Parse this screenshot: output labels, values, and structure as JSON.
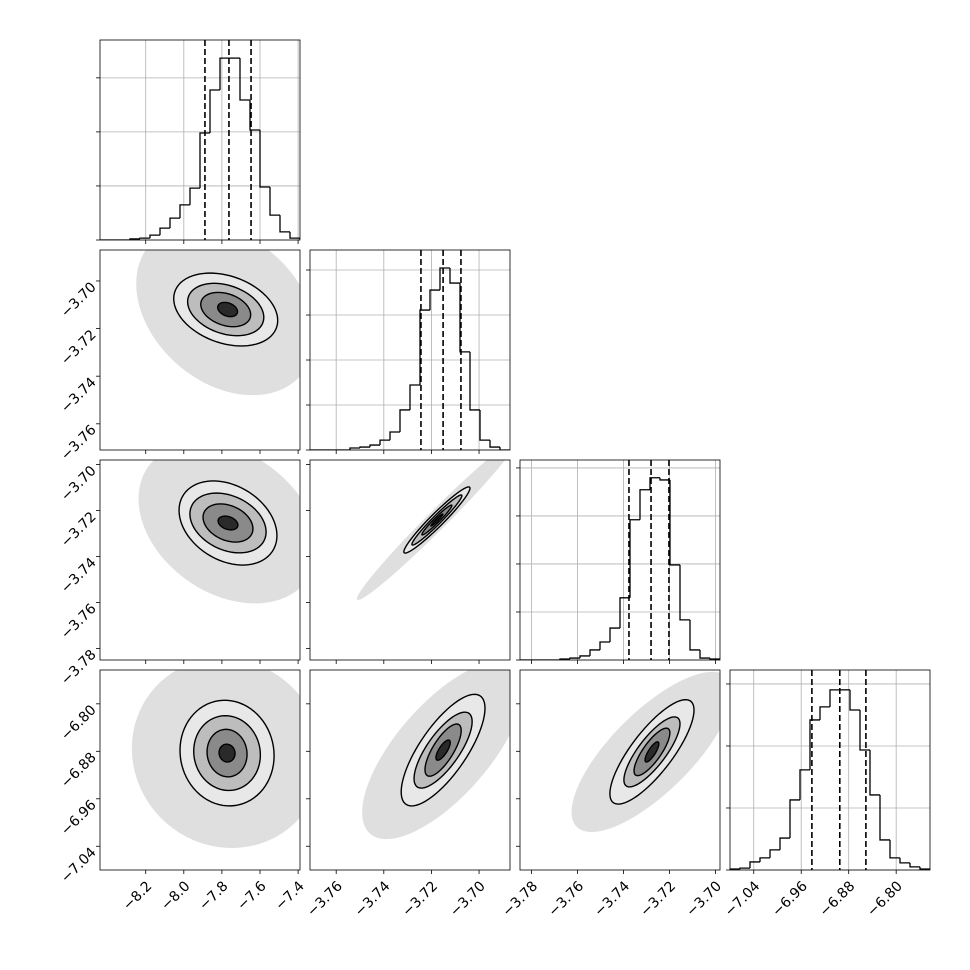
{
  "chart_data": {
    "type": "corner",
    "parameters": [
      {
        "lim": [
          -8.44,
          -7.39
        ],
        "ticks": [
          {
            "value": -8.2,
            "label": "−8.2"
          },
          {
            "value": -8.0,
            "label": "−8.0"
          },
          {
            "value": -7.8,
            "label": "−7.8"
          },
          {
            "value": -7.6,
            "label": "−7.6"
          },
          {
            "value": -7.4,
            "label": "−7.4"
          }
        ]
      },
      {
        "lim": [
          -3.771,
          -3.687
        ],
        "ticks": [
          {
            "value": -3.76,
            "label": "−3.76"
          },
          {
            "value": -3.74,
            "label": "−3.74"
          },
          {
            "value": -3.72,
            "label": "−3.72"
          },
          {
            "value": -3.7,
            "label": "−3.70"
          }
        ]
      },
      {
        "lim": [
          -3.785,
          -3.698
        ],
        "ticks": [
          {
            "value": -3.78,
            "label": "−3.78"
          },
          {
            "value": -3.76,
            "label": "−3.76"
          },
          {
            "value": -3.74,
            "label": "−3.74"
          },
          {
            "value": -3.72,
            "label": "−3.72"
          },
          {
            "value": -3.7,
            "label": "−3.70"
          }
        ]
      },
      {
        "lim": [
          -7.08,
          -6.743
        ],
        "ticks": [
          {
            "value": -7.04,
            "label": "−7.04"
          },
          {
            "value": -6.96,
            "label": "−6.96"
          },
          {
            "value": -6.88,
            "label": "−6.88"
          },
          {
            "value": -6.8,
            "label": "−6.80"
          }
        ]
      }
    ],
    "histograms": [
      {
        "bins": [
          -8.44,
          -8.3875,
          -8.335,
          -8.2825,
          -8.23,
          -8.1775,
          -8.125,
          -8.0725,
          -8.02,
          -7.9675,
          -7.915,
          -7.8625,
          -7.81,
          -7.7575,
          -7.705,
          -7.6525,
          -7.6,
          -7.5475,
          -7.495,
          -7.4425,
          -7.39
        ],
        "counts": [
          0,
          0,
          0,
          4,
          7,
          18,
          44,
          81,
          130,
          192,
          396,
          555,
          673,
          673,
          518,
          407,
          196,
          92,
          30,
          7
        ],
        "quantiles": [
          -7.889,
          -7.763,
          -7.647
        ],
        "ylim": [
          0,
          740
        ],
        "yticks": [
          0,
          200,
          400,
          600
        ]
      },
      {
        "bins": [
          -3.771,
          -3.7668,
          -3.7626,
          -3.7584,
          -3.7542,
          -3.75,
          -3.7458,
          -3.7416,
          -3.7374,
          -3.7332,
          -3.729,
          -3.7248,
          -3.7206,
          -3.7164,
          -3.7122,
          -3.708,
          -3.7038,
          -3.6996,
          -3.6954,
          -3.6912,
          -3.687
        ],
        "counts": [
          0,
          0,
          0,
          0,
          9,
          13,
          22,
          44,
          80,
          178,
          289,
          622,
          711,
          809,
          742,
          436,
          178,
          44,
          13,
          0
        ],
        "quantiles": [
          -3.7244,
          -3.7151,
          -3.7076
        ],
        "ylim": [
          0,
          889
        ],
        "yticks": [
          0,
          200,
          400,
          600,
          800
        ]
      },
      {
        "bins": [
          -3.785,
          -3.78065,
          -3.7763,
          -3.77195,
          -3.7676,
          -3.76325,
          -3.7589,
          -3.75455,
          -3.7502,
          -3.74585,
          -3.7415,
          -3.73715,
          -3.7328,
          -3.72845,
          -3.7241,
          -3.71975,
          -3.7154,
          -3.71105,
          -3.7067,
          -3.70235,
          -3.698
        ],
        "counts": [
          0,
          0,
          0,
          0,
          4,
          8,
          17,
          42,
          75,
          133,
          259,
          584,
          709,
          759,
          750,
          396,
          167,
          42,
          8,
          4
        ],
        "quantiles": [
          -3.7376,
          -3.728,
          -3.7202
        ],
        "ylim": [
          0,
          833
        ],
        "yticks": [
          0,
          200,
          400,
          600,
          800
        ]
      },
      {
        "bins": [
          -7.08,
          -7.06315,
          -7.0463,
          -7.02945,
          -7.0126,
          -6.99575,
          -6.9789,
          -6.96205,
          -6.9452,
          -6.92835,
          -6.9115,
          -6.89465,
          -6.8778,
          -6.86095,
          -6.8441,
          -6.82725,
          -6.8104,
          -6.79355,
          -6.7767,
          -6.75985,
          -6.743
        ],
        "counts": [
          3,
          6,
          26,
          39,
          65,
          103,
          226,
          323,
          484,
          526,
          581,
          581,
          516,
          387,
          242,
          97,
          39,
          23,
          10,
          3
        ],
        "quantiles": [
          -6.942,
          -6.895,
          -6.851
        ],
        "ylim": [
          0,
          645
        ],
        "yticks": [
          0,
          200,
          400,
          600
        ]
      }
    ],
    "hist_color": "#000000",
    "grid": true,
    "contour_color": "#000000",
    "contour_fills": [
      "#e8e8e8",
      "#bdbdbd",
      "#8a8a8a",
      "#2a2a2a"
    ],
    "cloud_color": "#b8b8b8",
    "panels": [
      {
        "x_param": 0,
        "y_param": 1,
        "cloud": {
          "center": [
            -7.78,
            -3.712
          ],
          "radius": [
            0.47,
            0.036
          ],
          "rho": -0.3
        },
        "contours": [
          {
            "center": [
              -7.78,
              -3.712
            ],
            "radius": [
              0.273,
              0.0153
            ],
            "rho": -0.3
          },
          {
            "center": [
              -7.78,
              -3.712
            ],
            "radius": [
              0.2,
              0.011
            ],
            "rho": -0.3
          },
          {
            "center": [
              -7.78,
              -3.712
            ],
            "radius": [
              0.131,
              0.0072
            ],
            "rho": -0.3
          },
          {
            "center": [
              -7.77,
              -3.712
            ],
            "radius": [
              0.052,
              0.003
            ],
            "rho": -0.3
          }
        ]
      },
      {
        "x_param": 0,
        "y_param": 2,
        "cloud": {
          "center": [
            -7.768,
            -3.7254
          ],
          "radius": [
            0.47,
            0.035
          ],
          "rho": -0.3
        },
        "contours": [
          {
            "center": [
              -7.768,
              -3.7254
            ],
            "radius": [
              0.257,
              0.0183
            ],
            "rho": -0.3
          },
          {
            "center": [
              -7.768,
              -3.7254
            ],
            "radius": [
              0.2,
              0.013
            ],
            "rho": -0.3
          },
          {
            "center": [
              -7.768,
              -3.7254
            ],
            "radius": [
              0.131,
              0.0083
            ],
            "rho": -0.3
          },
          {
            "center": [
              -7.768,
              -3.7254
            ],
            "radius": [
              0.052,
              0.003
            ],
            "rho": -0.3
          }
        ]
      },
      {
        "x_param": 1,
        "y_param": 2,
        "cloud": {
          "center": [
            -3.7177,
            -3.7241
          ],
          "radius": [
            0.0336,
            0.0348
          ],
          "rho": 0.985
        },
        "contours": [
          {
            "center": [
              -3.7177,
              -3.7241
            ],
            "radius": [
              0.0139,
              0.0144
            ],
            "rho": 0.96
          },
          {
            "center": [
              -3.7177,
              -3.7241
            ],
            "radius": [
              0.0105,
              0.0109
            ],
            "rho": 0.97
          },
          {
            "center": [
              -3.7177,
              -3.7241
            ],
            "radius": [
              0.0063,
              0.0065
            ],
            "rho": 0.97
          },
          {
            "center": [
              -3.7177,
              -3.7241
            ],
            "radius": [
              0.0025,
              0.0026
            ],
            "rho": 0.97
          }
        ]
      },
      {
        "x_param": 0,
        "y_param": 3,
        "cloud": {
          "center": [
            -7.773,
            -6.883
          ],
          "radius": [
            0.5,
            0.16
          ],
          "rho": -0.05
        },
        "contours": [
          {
            "center": [
              -7.773,
              -6.883
            ],
            "radius": [
              0.247,
              0.089
            ],
            "rho": -0.05
          },
          {
            "center": [
              -7.773,
              -6.883
            ],
            "radius": [
              0.175,
              0.063
            ],
            "rho": -0.05
          },
          {
            "center": [
              -7.773,
              -6.883
            ],
            "radius": [
              0.105,
              0.04
            ],
            "rho": -0.05
          },
          {
            "center": [
              -7.773,
              -6.883
            ],
            "radius": [
              0.042,
              0.015
            ],
            "rho": -0.05
          }
        ]
      },
      {
        "x_param": 1,
        "y_param": 3,
        "cloud": {
          "center": [
            -3.7151,
            -6.878
          ],
          "radius": [
            0.034,
            0.15
          ],
          "rho": 0.7
        },
        "contours": [
          {
            "center": [
              -3.7151,
              -6.878
            ],
            "radius": [
              0.0176,
              0.094
            ],
            "rho": 0.75
          },
          {
            "center": [
              -3.7151,
              -6.878
            ],
            "radius": [
              0.0122,
              0.064
            ],
            "rho": 0.75
          },
          {
            "center": [
              -3.7151,
              -6.878
            ],
            "radius": [
              0.0076,
              0.044
            ],
            "rho": 0.75
          },
          {
            "center": [
              -3.7151,
              -6.878
            ],
            "radius": [
              0.003,
              0.017
            ],
            "rho": 0.75
          }
        ]
      },
      {
        "x_param": 2,
        "y_param": 3,
        "cloud": {
          "center": [
            -3.7276,
            -6.881
          ],
          "radius": [
            0.035,
            0.135
          ],
          "rho": 0.75
        },
        "contours": [
          {
            "center": [
              -3.7276,
              -6.881
            ],
            "radius": [
              0.0183,
              0.088
            ],
            "rho": 0.8
          },
          {
            "center": [
              -3.7276,
              -6.881
            ],
            "radius": [
              0.0122,
              0.059
            ],
            "rho": 0.8
          },
          {
            "center": [
              -3.7276,
              -6.881
            ],
            "radius": [
              0.0078,
              0.04
            ],
            "rho": 0.8
          },
          {
            "center": [
              -3.7276,
              -6.881
            ],
            "radius": [
              0.003,
              0.017
            ],
            "rho": 0.8
          }
        ]
      }
    ]
  }
}
